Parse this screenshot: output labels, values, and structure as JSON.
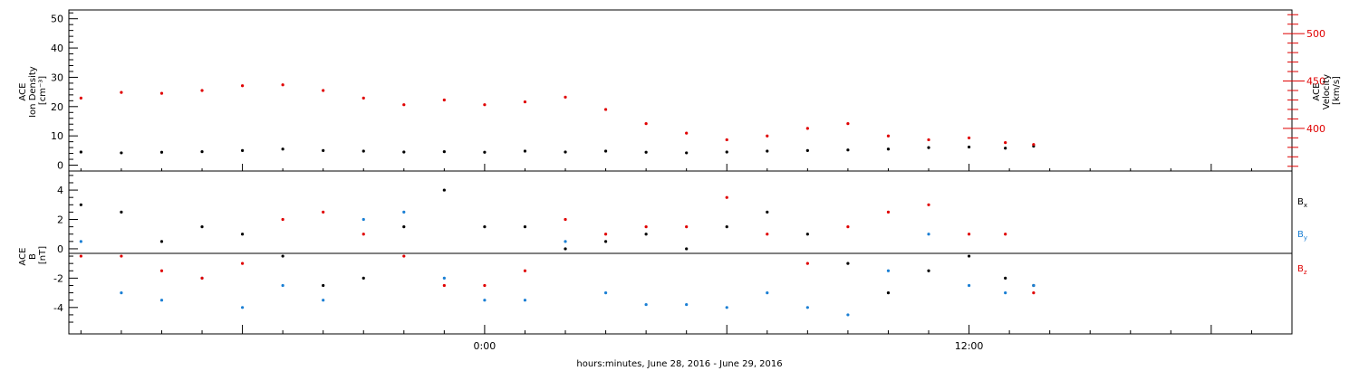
{
  "chart_data": [
    {
      "type": "scatter",
      "panel": "density_velocity",
      "ylabel_lines": [
        "ACE",
        "Ion Density",
        "[cm⁻³]"
      ],
      "ylim": [
        -2,
        53
      ],
      "yticks": [
        0,
        10,
        20,
        30,
        40,
        50
      ],
      "y2label_lines": [
        "ACE",
        "Velocity",
        "[km/s]"
      ],
      "y2lim": [
        355,
        525
      ],
      "y2ticks": [
        400,
        450,
        500
      ],
      "y2ticklabels": [
        "400",
        "450",
        "500"
      ],
      "series": [
        {
          "color": "#000000",
          "axis": "left",
          "x_hours": [
            -10,
            -9,
            -8,
            -7,
            -6,
            -5,
            -4,
            -3,
            -2,
            -1,
            0,
            1,
            2,
            3,
            4,
            5,
            6,
            7,
            8,
            9,
            10,
            11,
            12,
            12.9,
            13.6
          ],
          "values": [
            4.5,
            4.2,
            4.4,
            4.6,
            5.0,
            5.5,
            5.0,
            4.8,
            4.5,
            4.6,
            4.4,
            4.8,
            4.5,
            4.8,
            4.4,
            4.2,
            4.5,
            4.8,
            5.0,
            5.2,
            5.5,
            6.0,
            6.2,
            5.8,
            6.5
          ]
        },
        {
          "color": "#e00000",
          "axis": "right",
          "x_hours": [
            -10,
            -9,
            -8,
            -7,
            -6,
            -5,
            -4,
            -3,
            -2,
            -1,
            0,
            1,
            2,
            3,
            4,
            5,
            6,
            7,
            8,
            9,
            10,
            11,
            12,
            12.9,
            13.6
          ],
          "values": [
            432,
            438,
            437,
            440,
            445,
            446,
            440,
            432,
            425,
            430,
            425,
            428,
            433,
            420,
            405,
            395,
            388,
            392,
            400,
            405,
            392,
            388,
            390,
            385,
            383
          ]
        }
      ]
    },
    {
      "type": "scatter",
      "panel": "magnetic_field",
      "ylabel_lines": [
        "ACE",
        "B",
        "[nT]"
      ],
      "ylim": [
        -5.8,
        5.3
      ],
      "yticks": [
        -4,
        -2,
        0,
        2,
        4
      ],
      "zero_line": true,
      "series": [
        {
          "name": "Bx",
          "color": "#000000",
          "x_hours": [
            -10,
            -9,
            -8,
            -7,
            -6,
            -5,
            -4,
            -3,
            -2,
            -1,
            0,
            1,
            2,
            3,
            4,
            5,
            6,
            7,
            8,
            9,
            10,
            11,
            12,
            12.9,
            13.6
          ],
          "values": [
            3.0,
            2.5,
            0.5,
            1.5,
            1.0,
            -0.5,
            -2.5,
            -2.0,
            1.5,
            4.0,
            1.5,
            1.5,
            0.0,
            0.5,
            1.0,
            0.0,
            1.5,
            2.5,
            1.0,
            -1.0,
            -3.0,
            -1.5,
            -0.5,
            -2.0,
            -2.5
          ]
        },
        {
          "name": "By",
          "color": "#1a7fd4",
          "x_hours": [
            -10,
            -9,
            -8,
            -7,
            -6,
            -5,
            -4,
            -3,
            -2,
            -1,
            0,
            1,
            2,
            3,
            4,
            5,
            6,
            7,
            8,
            9,
            10,
            11,
            12,
            12.9,
            13.6
          ],
          "values": [
            0.5,
            -3.0,
            -3.5,
            -2.0,
            -4.0,
            -2.5,
            -3.5,
            2.0,
            2.5,
            -2.0,
            -3.5,
            -3.5,
            0.5,
            -3.0,
            -3.8,
            -3.8,
            -4.0,
            -3.0,
            -4.0,
            -4.5,
            -1.5,
            1.0,
            -2.5,
            -3.0,
            -2.5
          ]
        },
        {
          "name": "Bz",
          "color": "#e00000",
          "x_hours": [
            -10,
            -9,
            -8,
            -7,
            -6,
            -5,
            -4,
            -3,
            -2,
            -1,
            0,
            1,
            2,
            3,
            4,
            5,
            6,
            7,
            8,
            9,
            10,
            11,
            12,
            12.9,
            13.6
          ],
          "values": [
            -0.5,
            -0.5,
            -1.5,
            -2.0,
            -1.0,
            2.0,
            2.5,
            1.0,
            -0.5,
            -2.5,
            -2.5,
            -1.5,
            2.0,
            1.0,
            1.5,
            1.5,
            3.5,
            1.0,
            -1.0,
            1.5,
            2.5,
            3.0,
            1.0,
            1.0,
            -3.0
          ]
        }
      ],
      "legend": [
        "B",
        "B",
        "B"
      ],
      "legend_subscripts": [
        "x",
        "y",
        "z"
      ]
    }
  ],
  "xaxis": {
    "ticks_hours": [
      0,
      12
    ],
    "ticklabels": [
      "0:00",
      "12:00"
    ],
    "xlim_hours": [
      -10.3,
      20
    ],
    "label": "hours:minutes, June 28, 2016 - June 29, 2016"
  }
}
